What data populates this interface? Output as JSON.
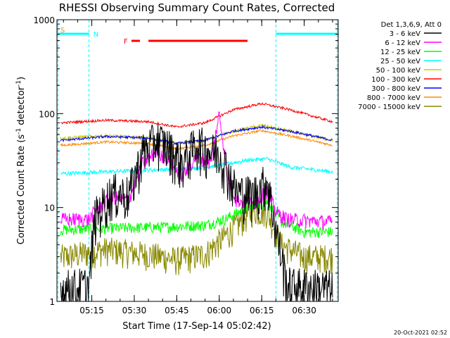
{
  "chart_data": {
    "type": "line",
    "title": "RHESSI Observing Summary Count Rates, Corrected",
    "xlabel": "Start Time (17-Sep-14 05:02:42)",
    "ylabel_parts": [
      "Corrected Count Rate (s",
      "-1",
      " detector",
      "-1",
      ")"
    ],
    "y_scale": "log",
    "ylim": [
      1,
      1000
    ],
    "y_ticks": [
      {
        "value": 1,
        "label": "1"
      },
      {
        "value": 10,
        "label": "10"
      },
      {
        "value": 100,
        "label": "100"
      },
      {
        "value": 1000,
        "label": "1000"
      }
    ],
    "xlim": [
      "05:02:42",
      "06:42:00"
    ],
    "x_ticks": [
      "05:15",
      "05:30",
      "05:45",
      "06:00",
      "06:15",
      "06:30"
    ],
    "legend": {
      "placement": "right",
      "header": "Det 1,3,6,9, Att 0",
      "entries": [
        {
          "name": "3 - 6 keV",
          "color": "#000000"
        },
        {
          "name": "6 - 12 keV",
          "color": "#ff00ff"
        },
        {
          "name": "12 - 25 keV",
          "color": "#00ff00"
        },
        {
          "name": "25 - 50 keV",
          "color": "#00ffff"
        },
        {
          "name": "50 - 100 keV",
          "color": "#cccc00"
        },
        {
          "name": "100 - 300 keV",
          "color": "#ff0000"
        },
        {
          "name": "300 - 800 keV",
          "color": "#0000ff"
        },
        {
          "name": "800 - 7000 keV",
          "color": "#ff8800"
        },
        {
          "name": "7000 - 15000 keV",
          "color": "#888800"
        }
      ]
    },
    "flags": [
      {
        "label": "S",
        "color": "#ff8800",
        "segments": []
      },
      {
        "label": "N",
        "color": "#00ffff",
        "segments": [
          [
            "05:02:42",
            "05:14:00"
          ],
          [
            "06:20:00",
            "06:42:00"
          ]
        ]
      },
      {
        "label": "F",
        "color": "#ff0000",
        "segments": [
          [
            "05:29:00",
            "05:32:00"
          ],
          [
            "05:35:00",
            "06:10:00"
          ]
        ]
      }
    ],
    "night_boundaries": [
      "05:14:00",
      "06:20:00"
    ],
    "series": [
      {
        "name": "3 - 6 keV",
        "color": "#000000",
        "points": [
          [
            "05:05",
            1.4
          ],
          [
            "05:14",
            1.5
          ],
          [
            "05:16",
            8
          ],
          [
            "05:22",
            15
          ],
          [
            "05:28",
            14
          ],
          [
            "05:33",
            40
          ],
          [
            "05:38",
            55
          ],
          [
            "05:42",
            45
          ],
          [
            "05:47",
            30
          ],
          [
            "05:52",
            50
          ],
          [
            "05:57",
            40
          ],
          [
            "06:00",
            40
          ],
          [
            "06:03",
            25
          ],
          [
            "06:06",
            15
          ],
          [
            "06:12",
            14
          ],
          [
            "06:17",
            20
          ],
          [
            "06:20",
            6
          ],
          [
            "06:24",
            1.5
          ],
          [
            "06:40",
            1.4
          ]
        ]
      },
      {
        "name": "6 - 12 keV",
        "color": "#ff00ff",
        "points": [
          [
            "05:05",
            7.5
          ],
          [
            "05:14",
            7.5
          ],
          [
            "05:16",
            9
          ],
          [
            "05:22",
            13
          ],
          [
            "05:28",
            12
          ],
          [
            "05:33",
            30
          ],
          [
            "05:38",
            40
          ],
          [
            "05:42",
            32
          ],
          [
            "05:47",
            22
          ],
          [
            "05:52",
            35
          ],
          [
            "05:57",
            30
          ],
          [
            "06:00",
            100
          ],
          [
            "06:03",
            22
          ],
          [
            "06:06",
            12
          ],
          [
            "06:12",
            11
          ],
          [
            "06:17",
            15
          ],
          [
            "06:20",
            9
          ],
          [
            "06:24",
            7.5
          ],
          [
            "06:40",
            7
          ]
        ]
      },
      {
        "name": "12 - 25 keV",
        "color": "#00ff00",
        "points": [
          [
            "05:05",
            5.8
          ],
          [
            "05:20",
            6
          ],
          [
            "05:40",
            6.2
          ],
          [
            "05:55",
            6.5
          ],
          [
            "06:02",
            7.5
          ],
          [
            "06:10",
            10
          ],
          [
            "06:17",
            11.5
          ],
          [
            "06:22",
            7
          ],
          [
            "06:30",
            5.5
          ],
          [
            "06:40",
            5.5
          ]
        ]
      },
      {
        "name": "25 - 50 keV",
        "color": "#00ffff",
        "points": [
          [
            "05:05",
            23
          ],
          [
            "05:20",
            24
          ],
          [
            "05:35",
            25
          ],
          [
            "05:50",
            26
          ],
          [
            "06:00",
            28
          ],
          [
            "06:10",
            32
          ],
          [
            "06:17",
            33
          ],
          [
            "06:25",
            27
          ],
          [
            "06:40",
            24
          ]
        ]
      },
      {
        "name": "50 - 100 keV",
        "color": "#cccc00",
        "points": [
          [
            "05:05",
            55
          ],
          [
            "05:20",
            58
          ],
          [
            "05:35",
            55
          ],
          [
            "05:45",
            48
          ],
          [
            "05:55",
            52
          ],
          [
            "06:05",
            65
          ],
          [
            "06:15",
            75
          ],
          [
            "06:25",
            65
          ],
          [
            "06:40",
            52
          ]
        ]
      },
      {
        "name": "100 - 300 keV",
        "color": "#ff0000",
        "points": [
          [
            "05:05",
            80
          ],
          [
            "05:20",
            85
          ],
          [
            "05:35",
            82
          ],
          [
            "05:45",
            72
          ],
          [
            "05:55",
            80
          ],
          [
            "06:05",
            110
          ],
          [
            "06:15",
            128
          ],
          [
            "06:25",
            110
          ],
          [
            "06:40",
            82
          ]
        ]
      },
      {
        "name": "300 - 800 keV",
        "color": "#0000ff",
        "points": [
          [
            "05:05",
            52
          ],
          [
            "05:20",
            57
          ],
          [
            "05:35",
            55
          ],
          [
            "05:45",
            48
          ],
          [
            "05:55",
            52
          ],
          [
            "06:05",
            65
          ],
          [
            "06:15",
            72
          ],
          [
            "06:25",
            65
          ],
          [
            "06:40",
            52
          ]
        ]
      },
      {
        "name": "800 - 7000 keV",
        "color": "#ff8800",
        "points": [
          [
            "05:05",
            46
          ],
          [
            "05:20",
            50
          ],
          [
            "05:35",
            48
          ],
          [
            "05:45",
            42
          ],
          [
            "05:55",
            46
          ],
          [
            "06:05",
            58
          ],
          [
            "06:15",
            66
          ],
          [
            "06:25",
            58
          ],
          [
            "06:40",
            46
          ]
        ]
      },
      {
        "name": "7000 - 15000 keV",
        "color": "#888800",
        "points": [
          [
            "05:05",
            3
          ],
          [
            "05:20",
            3.6
          ],
          [
            "05:35",
            3.2
          ],
          [
            "05:45",
            2.8
          ],
          [
            "05:55",
            3.2
          ],
          [
            "06:05",
            6
          ],
          [
            "06:12",
            9.5
          ],
          [
            "06:17",
            9
          ],
          [
            "06:22",
            4
          ],
          [
            "06:30",
            3
          ],
          [
            "06:40",
            3
          ]
        ]
      }
    ]
  },
  "footer": {
    "timestamp": "20-Oct-2021 02:52"
  }
}
